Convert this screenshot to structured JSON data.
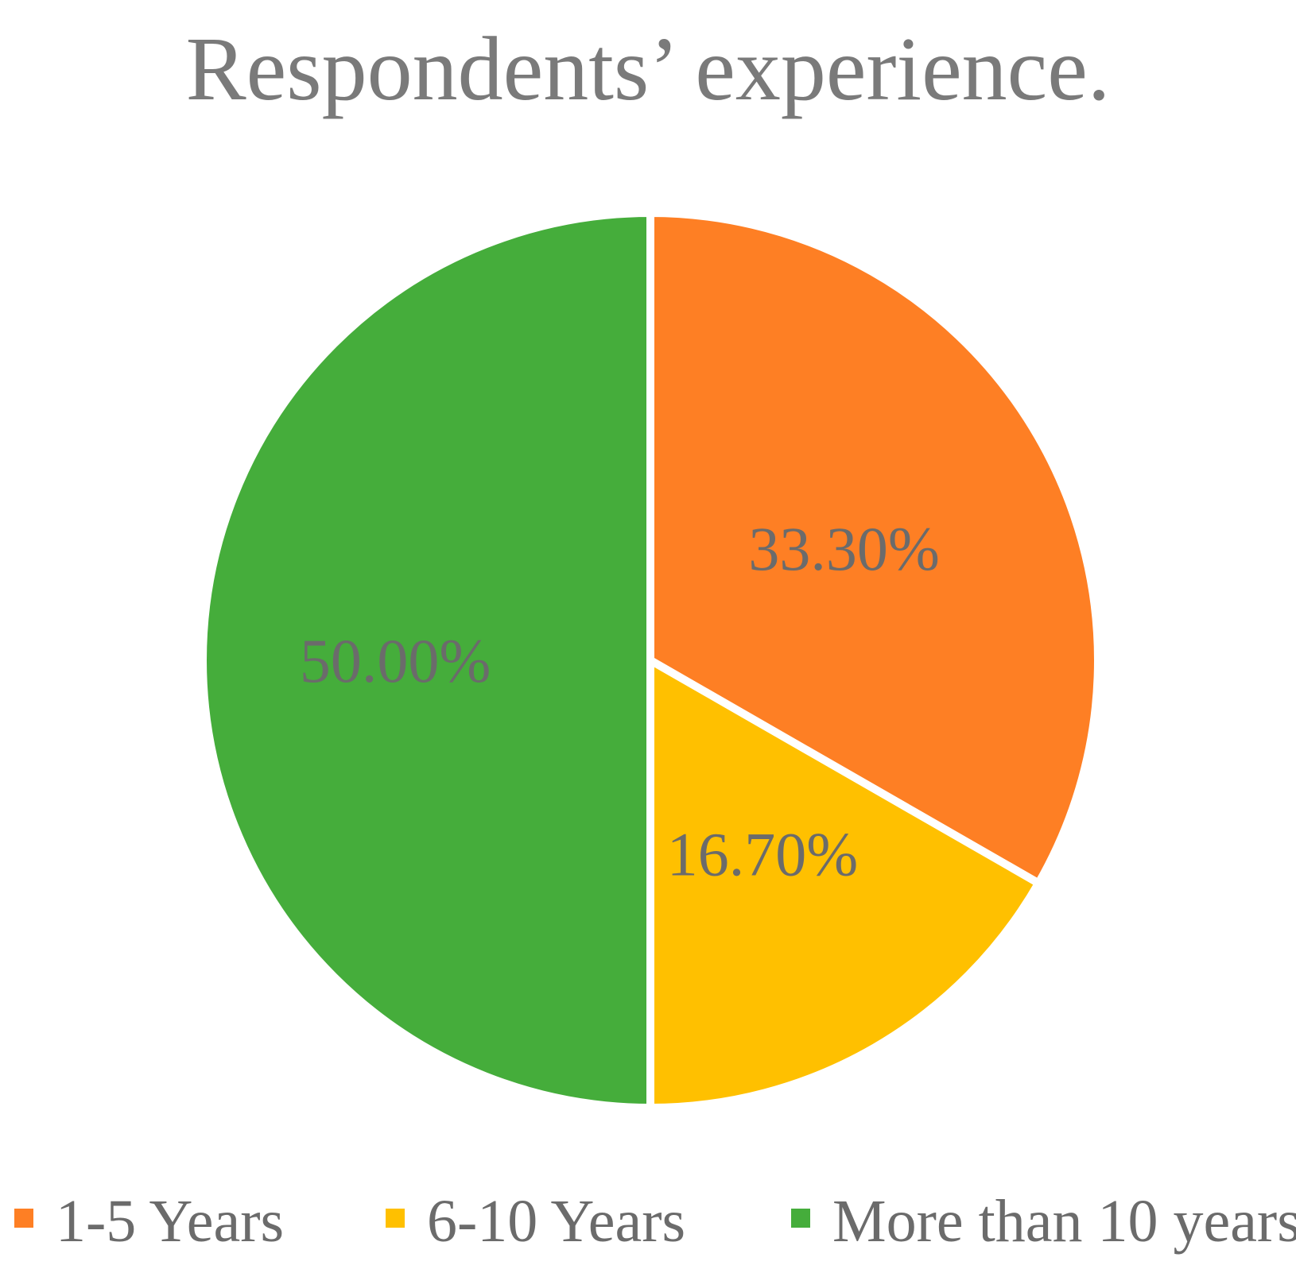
{
  "chart_data": {
    "type": "pie",
    "title": "Respondents’ experience.",
    "categories": [
      "1-5 Years",
      "6-10 Years",
      "More than 10 years"
    ],
    "values": [
      33.3,
      16.7,
      50.0
    ],
    "data_labels": [
      "33.30%",
      "16.70%",
      "50.00%"
    ],
    "colors": [
      "#FE7F24",
      "#FFC000",
      "#45AD3B"
    ],
    "start": "12 o'clock",
    "direction": "clockwise",
    "legend_position": "bottom"
  }
}
